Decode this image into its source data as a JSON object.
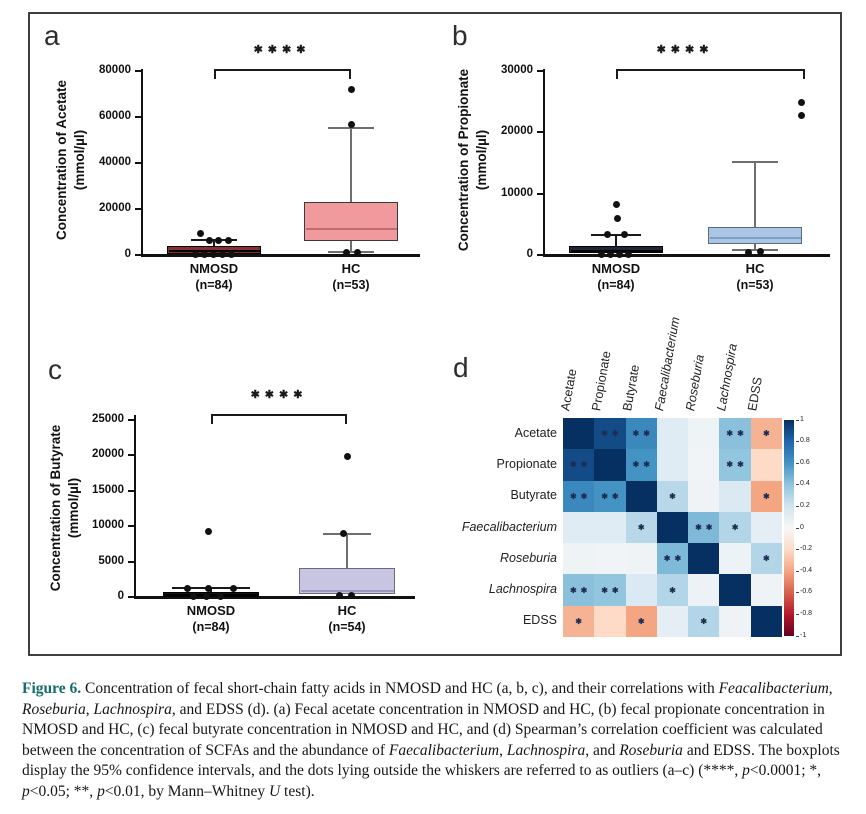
{
  "chart_data": [
    {
      "type": "box",
      "panel": "a",
      "ylabel_lines": [
        "Concentration of Acetate",
        "(mmol/µl)"
      ],
      "ylim": [
        0,
        80000
      ],
      "yticks": [
        0,
        20000,
        40000,
        60000,
        80000
      ],
      "significance": "****",
      "groups": [
        {
          "name": "NMOSD",
          "n_label": "(n=84)",
          "fill": "#8a2e31",
          "border": "#000000",
          "median_color": "#000000",
          "whisker_color": "#1a1a1a",
          "q1": 400,
          "median": 1800,
          "q3": 3800,
          "whisker_low": 100,
          "whisker_high": 6500,
          "outliers_high": [
            9500,
            6500,
            6500,
            6500
          ],
          "outliers_low": [
            250,
            250,
            250,
            250,
            250
          ]
        },
        {
          "name": "HC",
          "n_label": "(n=53)",
          "fill": "#f19a9e",
          "border": "#3a3a3a",
          "median_color": "#c4696e",
          "whisker_color": "#6e6e6e",
          "q1": 6000,
          "median": 11500,
          "q3": 23000,
          "whisker_low": 1300,
          "whisker_high": 55200,
          "outliers_high": [
            72000,
            56800
          ],
          "outliers_low": [
            1300,
            1300
          ]
        }
      ]
    },
    {
      "type": "box",
      "panel": "b",
      "ylabel_lines": [
        "Concentration of Propionate",
        "(mmol/µl)"
      ],
      "ylim": [
        0,
        30000
      ],
      "yticks": [
        0,
        10000,
        20000,
        30000
      ],
      "significance": "****",
      "groups": [
        {
          "name": "NMOSD",
          "n_label": "(n=84)",
          "fill": "#20263e",
          "border": "#000000",
          "median_color": "#000000",
          "whisker_color": "#1a1a1a",
          "q1": 250,
          "median": 700,
          "q3": 1400,
          "whisker_low": 50,
          "whisker_high": 3200,
          "outliers_high": [
            8300,
            5900,
            3400,
            3400
          ],
          "outliers_low": [
            150,
            150,
            150,
            150
          ]
        },
        {
          "name": "HC",
          "n_label": "(n=53)",
          "fill": "#aac6e4",
          "border": "#5a6b7c",
          "median_color": "#7e9dc2",
          "whisker_color": "#6e6e6e",
          "q1": 1800,
          "median": 2700,
          "q3": 4500,
          "whisker_low": 800,
          "whisker_high": 15100,
          "outliers_high": [
            24900,
            22700
          ],
          "outliers_low": [
            400,
            500
          ]
        }
      ]
    },
    {
      "type": "box",
      "panel": "c",
      "ylabel_lines": [
        "Concentration of Butyrate",
        "(mmol/µl)"
      ],
      "ylim": [
        0,
        25000
      ],
      "yticks": [
        0,
        5000,
        10000,
        15000,
        20000,
        25000
      ],
      "significance": "****",
      "groups": [
        {
          "name": "NMOSD",
          "n_label": "(n=84)",
          "fill": "#111111",
          "border": "#000000",
          "median_color": "#000000",
          "whisker_color": "#1a1a1a",
          "q1": 60,
          "median": 300,
          "q3": 650,
          "whisker_low": 20,
          "whisker_high": 1250,
          "outliers_high": [
            9300,
            1250,
            1250,
            1250
          ],
          "outliers_low": [
            60,
            60,
            60
          ]
        },
        {
          "name": "HC",
          "n_label": "(n=54)",
          "fill": "#c7c5e2",
          "border": "#6b6b80",
          "median_color": "#9a97bf",
          "whisker_color": "#6e6e6e",
          "q1": 400,
          "median": 900,
          "q3": 4100,
          "whisker_low": 150,
          "whisker_high": 8900,
          "outliers_high": [
            19800,
            9000
          ],
          "outliers_low": [
            150,
            150
          ]
        }
      ]
    },
    {
      "type": "heatmap",
      "panel": "d",
      "labels": [
        "Acetate",
        "Propionate",
        "Butyrate",
        "Faecalibacterium",
        "Roseburia",
        "Lachnospira",
        "EDSS"
      ],
      "italic_labels": [
        false,
        false,
        false,
        true,
        true,
        true,
        false
      ],
      "values": [
        [
          1,
          0.9,
          0.65,
          0.12,
          0.05,
          0.42,
          -0.35
        ],
        [
          0.9,
          1,
          0.6,
          0.12,
          0.03,
          0.4,
          -0.2
        ],
        [
          0.65,
          0.6,
          1,
          0.28,
          0.04,
          0.15,
          -0.4
        ],
        [
          0.12,
          0.12,
          0.28,
          1,
          0.45,
          0.3,
          0.1
        ],
        [
          0.05,
          0.03,
          0.04,
          0.45,
          1,
          0.06,
          0.3
        ],
        [
          0.42,
          0.4,
          0.15,
          0.3,
          0.06,
          1,
          0.04
        ],
        [
          -0.35,
          -0.2,
          -0.4,
          0.1,
          0.3,
          0.04,
          1
        ]
      ],
      "stars": [
        [
          "",
          "**",
          "**",
          "",
          "",
          "**",
          "*"
        ],
        [
          "**",
          "",
          "**",
          "",
          "",
          "**",
          ""
        ],
        [
          "**",
          "**",
          "",
          "*",
          "",
          "",
          "*"
        ],
        [
          "",
          "",
          "*",
          "",
          "**",
          "*",
          ""
        ],
        [
          "",
          "",
          "",
          "**",
          "",
          "",
          "*"
        ],
        [
          "**",
          "**",
          "",
          "*",
          "",
          "",
          ""
        ],
        [
          "*",
          "",
          "*",
          "",
          "*",
          "",
          ""
        ]
      ],
      "colorbar_ticks": [
        "1",
        "0.8",
        "0.6",
        "0.4",
        "0.2",
        "0",
        "-0.2",
        "-0.4",
        "-0.6",
        "-0.8",
        "-1"
      ],
      "colorbar_range": [
        1,
        -1
      ]
    }
  ],
  "caption": {
    "segments": [
      {
        "t": "Figure 6.",
        "b": true,
        "c": "#166b6d"
      },
      {
        "t": "  Concentration of fecal short-chain fatty acids in NMOSD and HC (a, b, c), and their correlations with "
      },
      {
        "t": "Feacalibacterium",
        "i": true
      },
      {
        "t": ", "
      },
      {
        "t": "Roseburia",
        "i": true
      },
      {
        "t": ", "
      },
      {
        "t": "Lachnospira",
        "i": true
      },
      {
        "t": ", and EDSS (d). (a) Fecal acetate concentration in NMOSD and HC, (b) fecal propionate concentration in NMOSD and HC, (c) fecal butyrate concentration in NMOSD and HC, and (d) Spearman’s correlation coefficient was calculated between the concentration of SCFAs and the abundance of "
      },
      {
        "t": "Faecalibacterium",
        "i": true
      },
      {
        "t": ", "
      },
      {
        "t": "Lachnospira",
        "i": true
      },
      {
        "t": ", and "
      },
      {
        "t": "Roseburia",
        "i": true
      },
      {
        "t": " and EDSS. The boxplots display the 95% confidence intervals, and the dots lying outside the whiskers are referred to as outliers (a–c) (****, "
      },
      {
        "t": "p",
        "i": true
      },
      {
        "t": "<0.0001; *, "
      },
      {
        "t": "p",
        "i": true
      },
      {
        "t": "<0.05; **, "
      },
      {
        "t": "p",
        "i": true
      },
      {
        "t": "<0.01, by Mann–Whitney "
      },
      {
        "t": "U",
        "i": true
      },
      {
        "t": " test)."
      }
    ]
  }
}
